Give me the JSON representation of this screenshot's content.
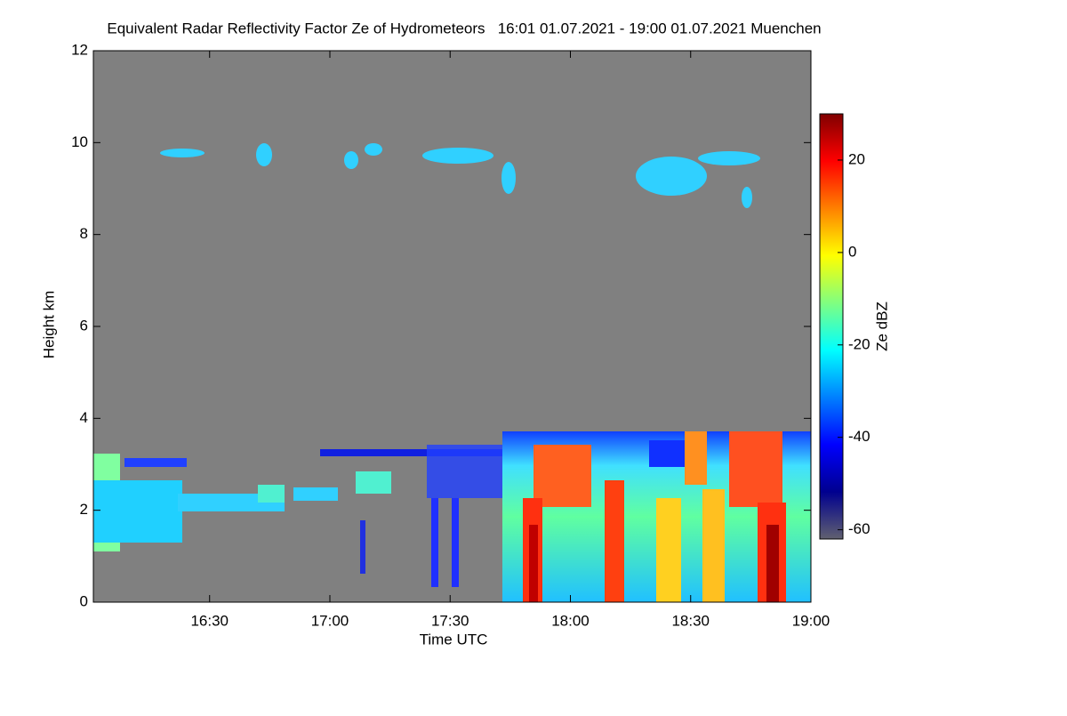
{
  "chart_data": {
    "type": "heatmap",
    "title": "Equivalent Radar Reflectivity Factor Ze of Hydrometeors   16:01 01.07.2021 - 19:00 01.07.2021 Muenchen",
    "xlabel": "Time UTC",
    "ylabel": "Height km",
    "colorbar_label": "Ze dBZ",
    "colormap": "jet",
    "background": "#808080",
    "xlim": [
      16.0167,
      19.0
    ],
    "xticks": [
      {
        "value": 16.5,
        "label": "16:30"
      },
      {
        "value": 17,
        "label": "17:00"
      },
      {
        "value": 17.5,
        "label": "17:30"
      },
      {
        "value": 18,
        "label": "18:00"
      },
      {
        "value": 18.5,
        "label": "18:30"
      },
      {
        "value": 19,
        "label": "19:00"
      }
    ],
    "ylim": [
      0,
      12
    ],
    "yticks": [
      0,
      2,
      4,
      6,
      8,
      10,
      12
    ],
    "zlim": [
      -62,
      30
    ],
    "zticks": [
      -60,
      -40,
      -20,
      0,
      20
    ]
  }
}
